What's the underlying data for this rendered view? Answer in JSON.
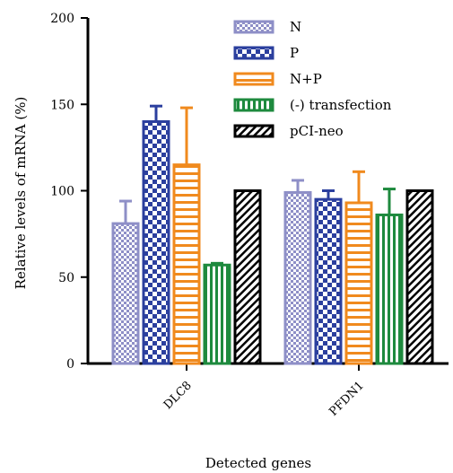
{
  "chart_data": {
    "type": "bar",
    "title": "",
    "xlabel": "Detected genes",
    "ylabel": "Relative levels of mRNA (%)",
    "ylim": [
      0,
      200
    ],
    "yticks": [
      0,
      50,
      100,
      150,
      200
    ],
    "categories": [
      "DLC8",
      "PFDN1"
    ],
    "legend_position": "top-right",
    "series": [
      {
        "name": "N",
        "values": [
          81,
          99
        ],
        "errors": [
          13,
          7
        ],
        "color": "#8e8fc7",
        "pattern": "checker-fine"
      },
      {
        "name": "P",
        "values": [
          140,
          95
        ],
        "errors": [
          9,
          5
        ],
        "color": "#2b3f9e",
        "pattern": "checker-coarse"
      },
      {
        "name": "N+P",
        "values": [
          115,
          93
        ],
        "errors": [
          33,
          18
        ],
        "color": "#f08a1e",
        "pattern": "horizontal-stripes"
      },
      {
        "name": "(-) transfection",
        "values": [
          57,
          86
        ],
        "errors": [
          1,
          15
        ],
        "color": "#1e8a3e",
        "pattern": "vertical-stripes"
      },
      {
        "name": "pCI-neo",
        "values": [
          100,
          100
        ],
        "errors": [
          0,
          0
        ],
        "color": "#000000",
        "pattern": "diagonal-hatch"
      }
    ]
  }
}
